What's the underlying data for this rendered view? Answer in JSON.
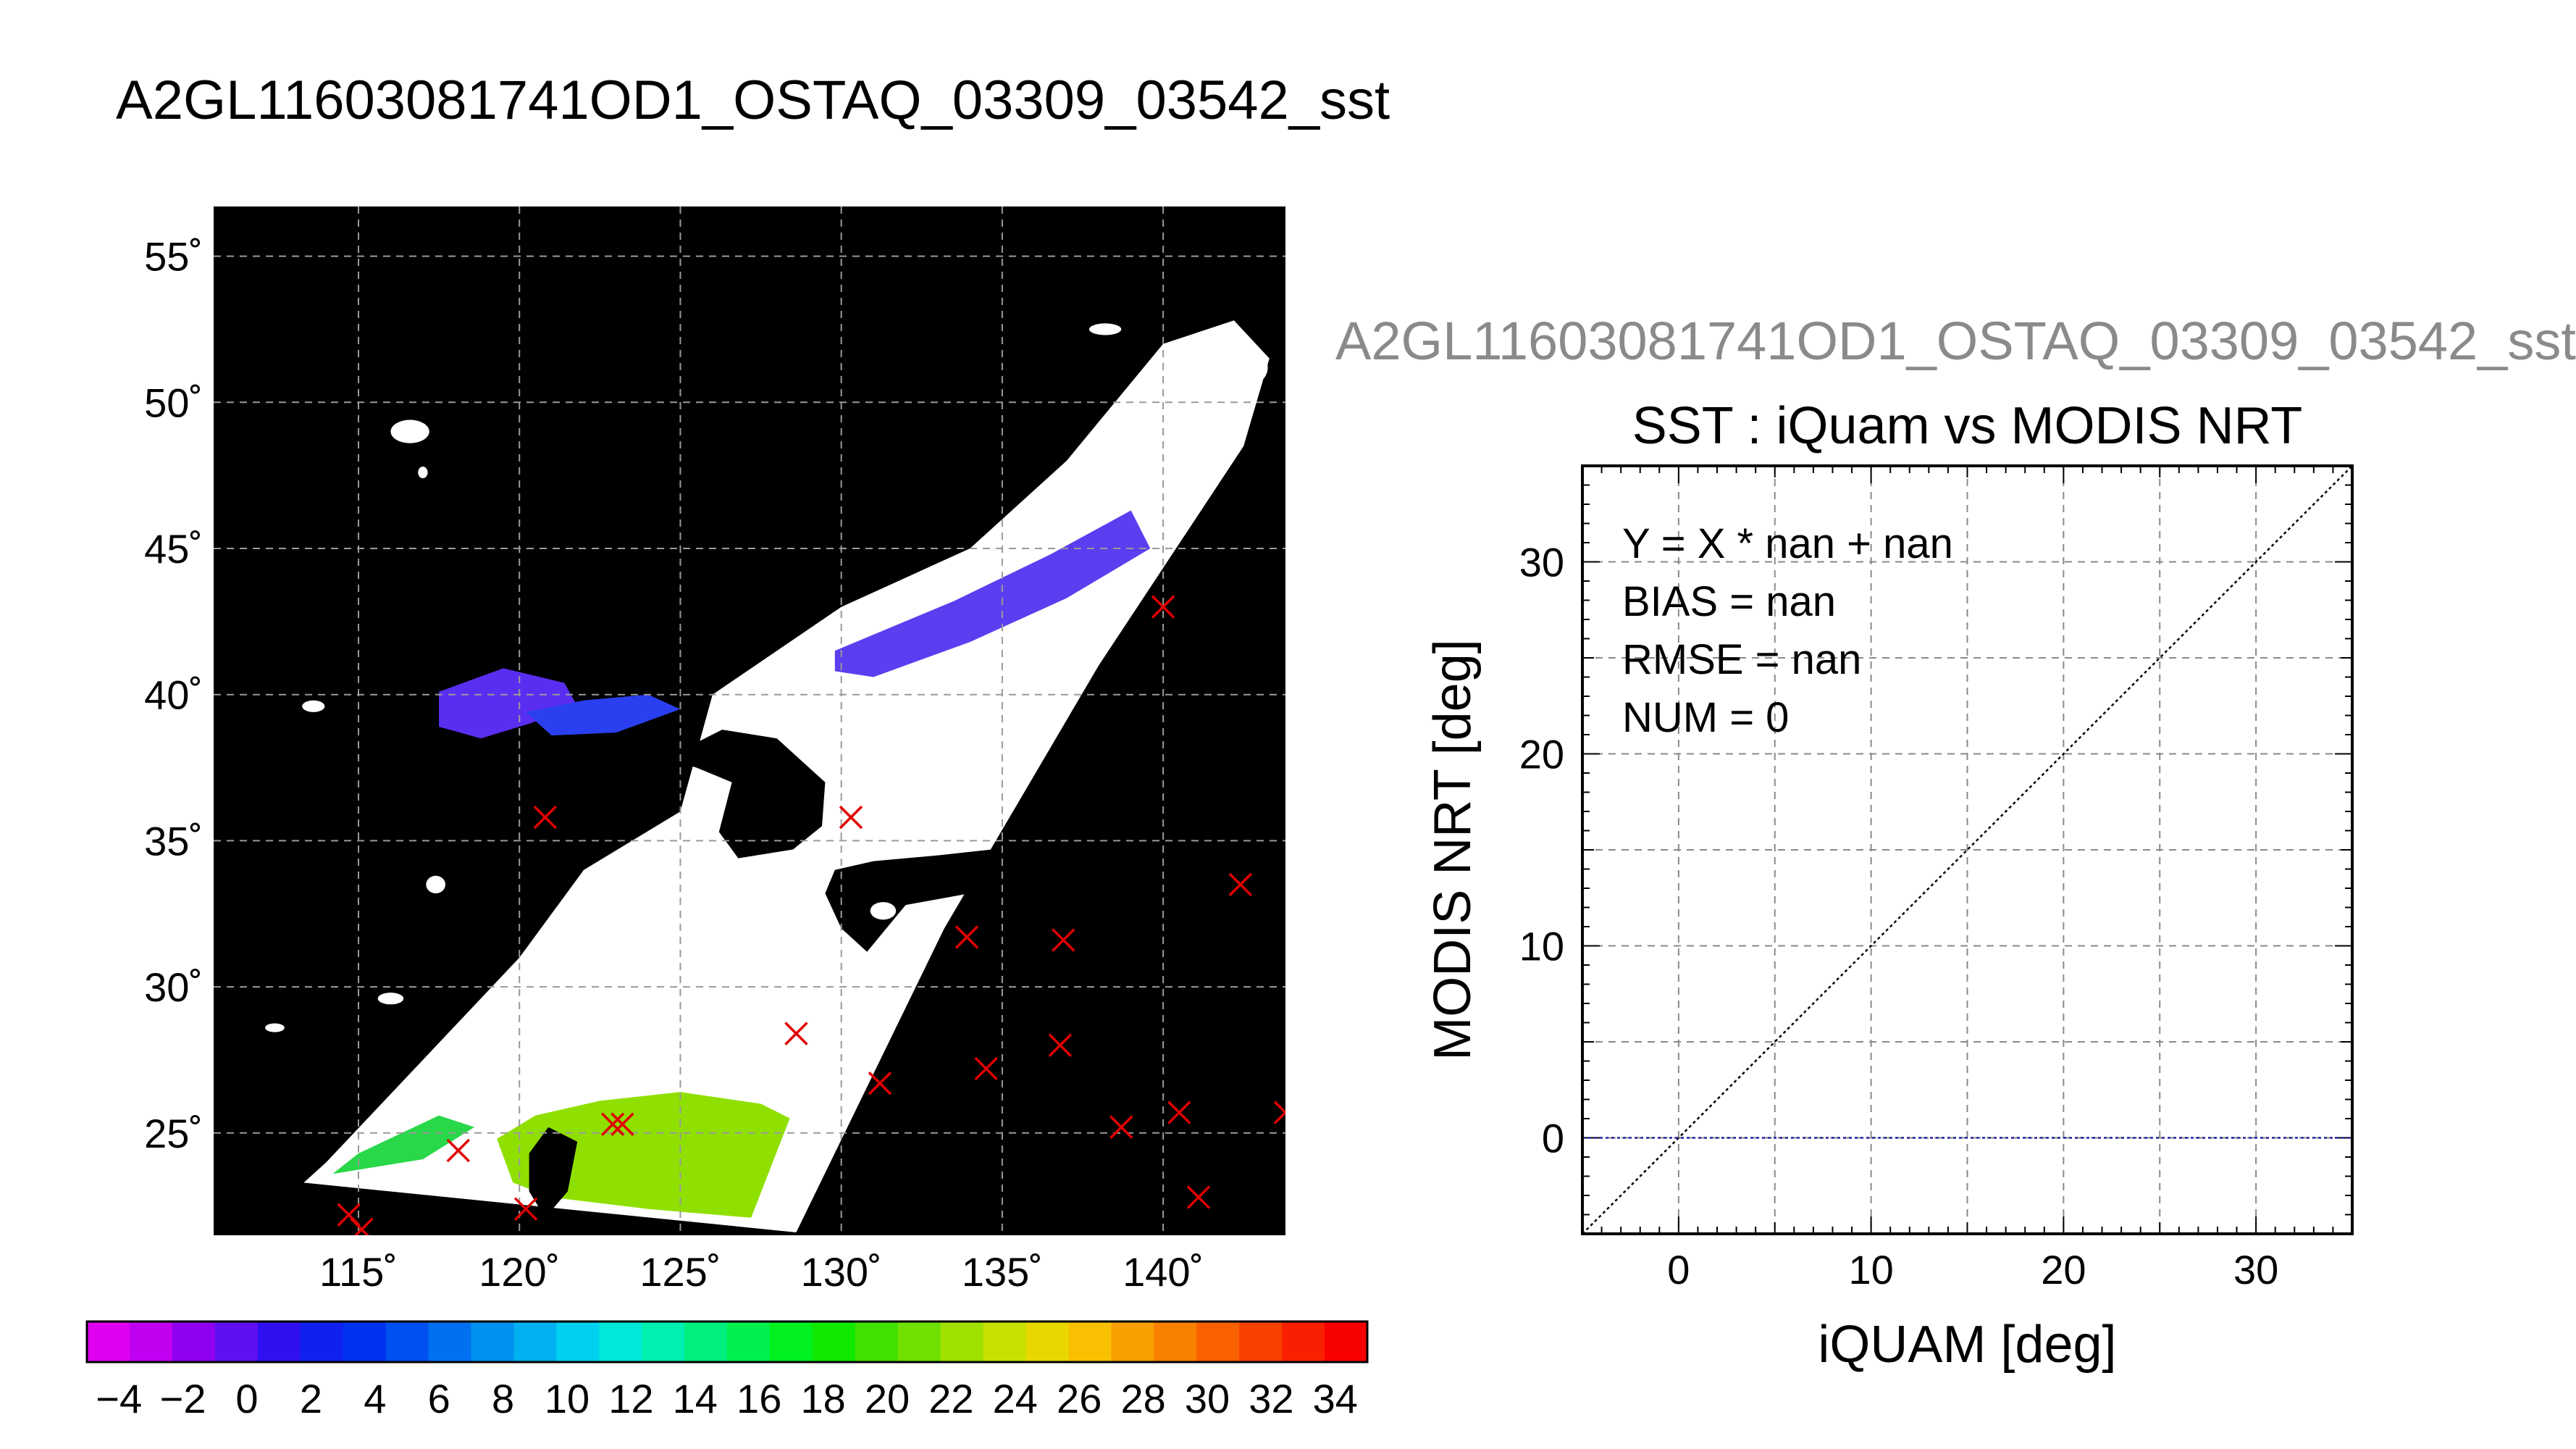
{
  "figure": {
    "title": "A2GL11603081741OD1_OSTAQ_03309_03542_sst",
    "subtitle": "A2GL11603081741OD1_OSTAQ_03309_03542_sst"
  },
  "chart_data": [
    {
      "type": "map",
      "lon_range": [
        110.5,
        143.8
      ],
      "lat_range": [
        21.5,
        56.7
      ],
      "lon_ticks": [
        115,
        120,
        125,
        130,
        135,
        140
      ],
      "lat_ticks": [
        25,
        30,
        35,
        40,
        45,
        50,
        55
      ],
      "lon_tick_labels": [
        "115˚",
        "120˚",
        "125˚",
        "130˚",
        "135˚",
        "140˚"
      ],
      "lat_tick_labels": [
        "25˚",
        "30˚",
        "35˚",
        "40˚",
        "45˚",
        "50˚",
        "55˚"
      ],
      "grid": true,
      "background": "#000000",
      "land_color": "#ffffff",
      "iquam_points": [
        {
          "lon": 114.7,
          "lat": 22.2
        },
        {
          "lon": 115.1,
          "lat": 21.7
        },
        {
          "lon": 118.1,
          "lat": 24.4
        },
        {
          "lon": 120.2,
          "lat": 22.4
        },
        {
          "lon": 122.9,
          "lat": 25.3
        },
        {
          "lon": 123.2,
          "lat": 25.3
        },
        {
          "lon": 120.8,
          "lat": 35.8
        },
        {
          "lon": 130.3,
          "lat": 35.8
        },
        {
          "lon": 128.6,
          "lat": 28.4
        },
        {
          "lon": 131.2,
          "lat": 26.7
        },
        {
          "lon": 133.9,
          "lat": 31.7
        },
        {
          "lon": 134.5,
          "lat": 27.2
        },
        {
          "lon": 136.9,
          "lat": 31.6
        },
        {
          "lon": 136.8,
          "lat": 28.0
        },
        {
          "lon": 138.7,
          "lat": 25.2
        },
        {
          "lon": 140.0,
          "lat": 43.0
        },
        {
          "lon": 140.5,
          "lat": 25.7
        },
        {
          "lon": 141.1,
          "lat": 22.8
        },
        {
          "lon": 142.4,
          "lat": 33.5
        },
        {
          "lon": 143.8,
          "lat": 25.7
        }
      ],
      "marker_color": "#e00000",
      "colorbar": {
        "min": -5,
        "max": 35,
        "tick_labels": [
          "−4",
          "−2",
          "0",
          "2",
          "4",
          "6",
          "8",
          "10",
          "12",
          "14",
          "16",
          "18",
          "20",
          "22",
          "24",
          "26",
          "28",
          "30",
          "32",
          "34"
        ],
        "tick_values": [
          -4,
          -2,
          0,
          2,
          4,
          6,
          8,
          10,
          12,
          14,
          16,
          18,
          20,
          22,
          24,
          26,
          28,
          30,
          32,
          34
        ],
        "colors": [
          "#e000f0",
          "#c000f0",
          "#9000f0",
          "#6010f0",
          "#3010f0",
          "#1020f0",
          "#0030f0",
          "#0050f0",
          "#0070f0",
          "#0090f0",
          "#00b0f0",
          "#00d0f0",
          "#00e8d8",
          "#00f0b0",
          "#00f080",
          "#00f050",
          "#00f020",
          "#10e800",
          "#40e000",
          "#70e000",
          "#a0e000",
          "#c8e000",
          "#e8d800",
          "#f8c000",
          "#f8a000",
          "#f88000",
          "#f86000",
          "#f84000",
          "#f82000",
          "#f80000"
        ]
      }
    },
    {
      "type": "scatter",
      "title": "SST : iQuam vs MODIS NRT",
      "xlabel": "iQUAM [deg]",
      "ylabel": "MODIS NRT [deg]",
      "xlim": [
        -5,
        35
      ],
      "ylim": [
        -5,
        35
      ],
      "x_ticks": [
        0,
        10,
        20,
        30
      ],
      "y_ticks": [
        0,
        10,
        20,
        30
      ],
      "x_tick_labels": [
        "0",
        "10",
        "20",
        "30"
      ],
      "y_tick_labels": [
        "0",
        "10",
        "20",
        "30"
      ],
      "grid": true,
      "grid_step": 5,
      "points": [],
      "one_to_one_line": true,
      "zero_line_color": "#2020a0",
      "annotations": [
        "Y = X * nan + nan",
        "BIAS = nan",
        "RMSE = nan",
        "NUM = 0"
      ]
    }
  ]
}
